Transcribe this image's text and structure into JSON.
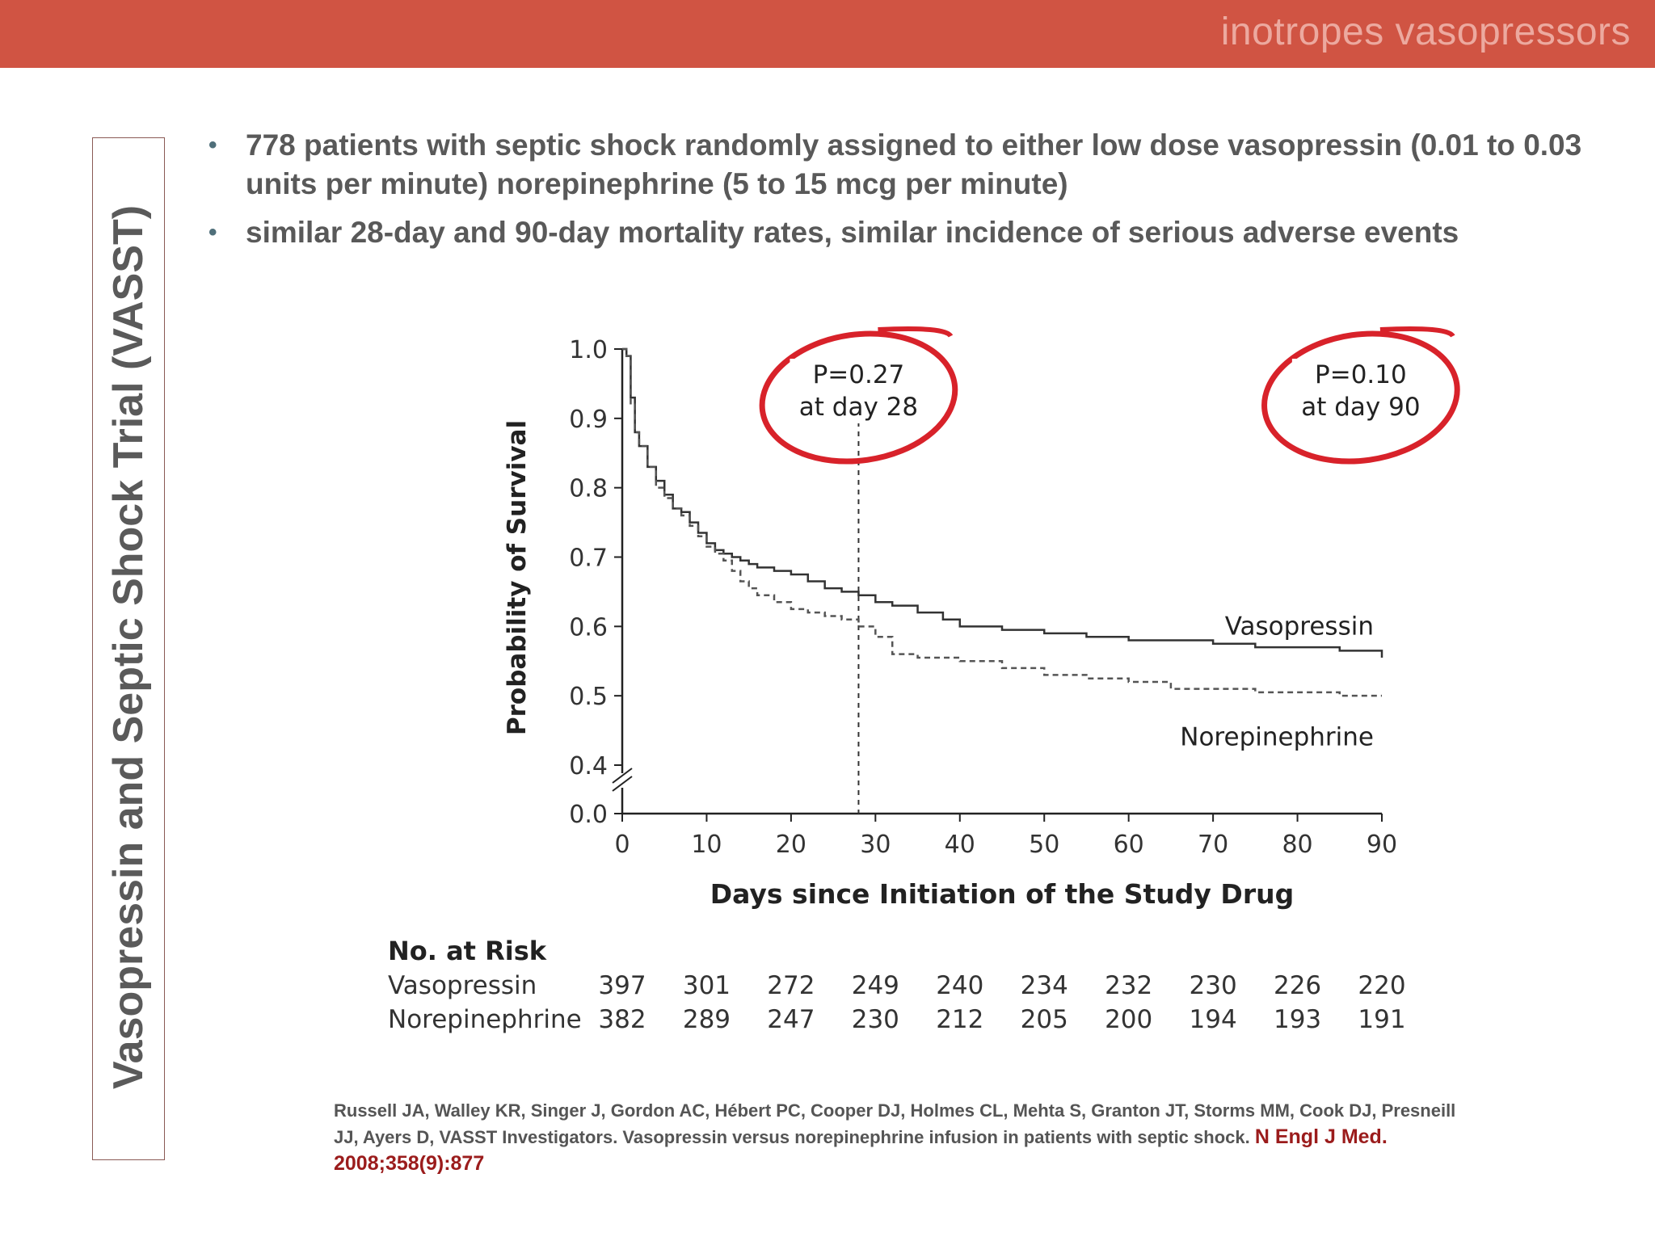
{
  "header": {
    "title": "inotropes vasopressors"
  },
  "side_title": "Vasopressin and Septic Shock Trial (VASST)",
  "bullets": [
    "778 patients with septic shock randomly assigned to either low dose vasopressin (0.01 to 0.03 units per minute) norepinephrine (5 to 15 mcg per minute)",
    "similar 28-day and 90-day mortality rates, similar incidence of serious adverse events"
  ],
  "colors": {
    "header_bar": "#d05443",
    "annotation_circle": "#d8222a",
    "citation_journal": "#9b1c1c"
  },
  "chart_data": {
    "type": "line",
    "title": "",
    "xlabel": "Days since Initiation of the Study Drug",
    "ylabel": "Probability of Survival",
    "xlim": [
      0,
      90
    ],
    "x_ticks": [
      "0",
      "10",
      "20",
      "30",
      "40",
      "50",
      "60",
      "70",
      "80",
      "90"
    ],
    "y_ticks": [
      "0.0",
      "0.4",
      "0.5",
      "0.6",
      "0.7",
      "0.8",
      "0.9",
      "1.0"
    ],
    "ylim": [
      0.4,
      1.0
    ],
    "y_axis_break": true,
    "grid": false,
    "series": [
      {
        "name": "Vasopressin",
        "style": "solid",
        "x": [
          0,
          0.5,
          1,
          1.5,
          2,
          3,
          4,
          5,
          6,
          7,
          8,
          9,
          10,
          11,
          12,
          13,
          14,
          15,
          16,
          18,
          20,
          22,
          24,
          26,
          28,
          30,
          32,
          35,
          38,
          40,
          45,
          50,
          55,
          60,
          65,
          70,
          75,
          80,
          85,
          89,
          90
        ],
        "y": [
          1.0,
          0.99,
          0.93,
          0.88,
          0.86,
          0.83,
          0.81,
          0.79,
          0.77,
          0.765,
          0.75,
          0.735,
          0.72,
          0.71,
          0.705,
          0.7,
          0.695,
          0.69,
          0.685,
          0.68,
          0.675,
          0.665,
          0.655,
          0.65,
          0.645,
          0.635,
          0.63,
          0.62,
          0.61,
          0.6,
          0.595,
          0.59,
          0.585,
          0.58,
          0.58,
          0.575,
          0.57,
          0.57,
          0.565,
          0.565,
          0.555
        ]
      },
      {
        "name": "Norepinephrine",
        "style": "dashed",
        "x": [
          0,
          0.5,
          1,
          1.5,
          2,
          3,
          4,
          5,
          6,
          7,
          8,
          9,
          10,
          11,
          12,
          13,
          14,
          15,
          16,
          18,
          20,
          22,
          24,
          26,
          28,
          29,
          30,
          32,
          35,
          40,
          45,
          50,
          55,
          60,
          65,
          70,
          75,
          80,
          85,
          90
        ],
        "y": [
          1.0,
          0.99,
          0.92,
          0.88,
          0.86,
          0.83,
          0.8,
          0.785,
          0.77,
          0.76,
          0.745,
          0.73,
          0.715,
          0.705,
          0.695,
          0.68,
          0.665,
          0.655,
          0.645,
          0.635,
          0.625,
          0.62,
          0.615,
          0.61,
          0.6,
          0.6,
          0.585,
          0.56,
          0.555,
          0.55,
          0.54,
          0.53,
          0.525,
          0.52,
          0.51,
          0.51,
          0.505,
          0.505,
          0.5,
          0.5
        ]
      }
    ],
    "reference_line": {
      "x": 28,
      "style": "dashed"
    },
    "annotations": [
      {
        "text": [
          "P=0.27",
          "at day 28"
        ],
        "x": 28,
        "circled": true
      },
      {
        "text": [
          "P=0.10",
          "at day 90"
        ],
        "x": 90,
        "circled": true
      }
    ],
    "series_labels": [
      "Vasopressin",
      "Norepinephrine"
    ]
  },
  "risk_table": {
    "title": "No. at Risk",
    "rows": [
      {
        "label": "Vasopressin",
        "values": [
          "397",
          "301",
          "272",
          "249",
          "240",
          "234",
          "232",
          "230",
          "226",
          "220"
        ]
      },
      {
        "label": "Norepinephrine",
        "values": [
          "382",
          "289",
          "247",
          "230",
          "212",
          "205",
          "200",
          "194",
          "193",
          "191"
        ]
      }
    ]
  },
  "citation": {
    "authors_text": "Russell JA, Walley KR, Singer J, Gordon AC, Hébert PC, Cooper DJ, Holmes CL, Mehta S, Granton JT, Storms MM, Cook DJ, Presneill JJ, Ayers D, VASST Investigators. Vasopressin versus norepinephrine infusion in patients with septic shock.",
    "journal": "N Engl J Med. 2008;358(9):877"
  }
}
